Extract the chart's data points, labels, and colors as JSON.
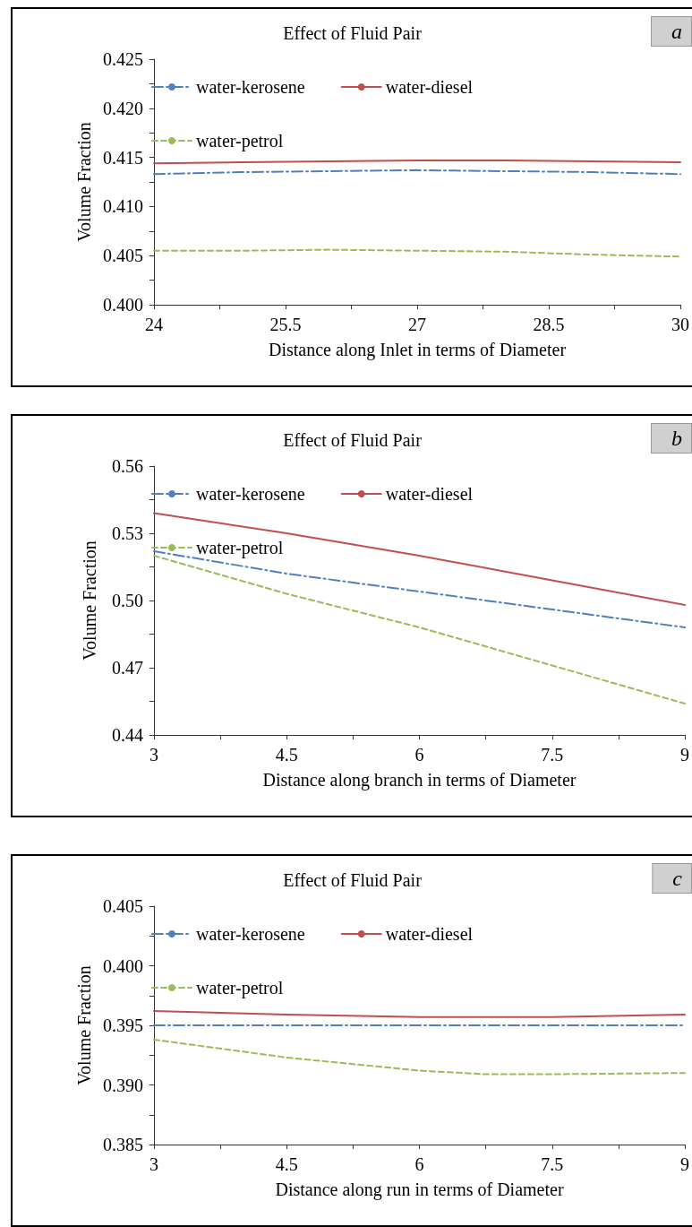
{
  "chart_data": [
    {
      "type": "line",
      "title": "Effect of Fluid Pair",
      "xlabel": "Distance along Inlet in terms of Diameter",
      "ylabel": "Volume Fraction",
      "annotations": [
        "a"
      ],
      "legend": "top",
      "grid": false,
      "marker": "none",
      "x": [
        24,
        25,
        26,
        27,
        28,
        29,
        30
      ],
      "xlim": [
        24,
        30
      ],
      "xticks": [
        24,
        {
          "value": 24.75,
          "label": null
        },
        25.5,
        {
          "value": 26.25,
          "label": null
        },
        27,
        {
          "value": 27.75,
          "label": null
        },
        28.5,
        {
          "value": 29.25,
          "label": null
        },
        30
      ],
      "ylim": [
        0.4,
        0.425
      ],
      "yticks": [
        {
          "value": 0.4,
          "label": "0.400"
        },
        {
          "value": 0.4025,
          "label": null
        },
        {
          "value": 0.405,
          "label": "0.405"
        },
        {
          "value": 0.4075,
          "label": null
        },
        {
          "value": 0.41,
          "label": "0.410"
        },
        {
          "value": 0.4125,
          "label": null
        },
        {
          "value": 0.415,
          "label": "0.415"
        },
        {
          "value": 0.4175,
          "label": null
        },
        {
          "value": 0.42,
          "label": "0.420"
        },
        {
          "value": 0.4225,
          "label": null
        },
        {
          "value": 0.425,
          "label": "0.425"
        }
      ],
      "series": [
        {
          "name": "water-kerosene",
          "color": "#4f81bd",
          "line_style": "dashdot",
          "values": [
            0.4133,
            0.4135,
            0.4136,
            0.4137,
            0.4136,
            0.4135,
            0.4133
          ]
        },
        {
          "name": "water-diesel",
          "color": "#c0504d",
          "line_style": "solid",
          "values": [
            0.4144,
            0.4145,
            0.4146,
            0.4147,
            0.4147,
            0.4146,
            0.4145
          ]
        },
        {
          "name": "water-petrol",
          "color": "#9bbb59",
          "line_style": "dashed",
          "values": [
            0.4055,
            0.4055,
            0.4056,
            0.4055,
            0.4054,
            0.4051,
            0.4049
          ]
        }
      ]
    },
    {
      "type": "line",
      "title": "Effect of Fluid Pair",
      "xlabel": "Distance along branch in terms of Diameter",
      "ylabel": "Volume Fraction",
      "annotations": [
        "b"
      ],
      "legend": "top",
      "grid": false,
      "marker": "none",
      "x": [
        3,
        4.5,
        6,
        7.5,
        9
      ],
      "xlim": [
        3,
        9
      ],
      "xticks": [
        3,
        {
          "value": 3.75,
          "label": null
        },
        4.5,
        {
          "value": 5.25,
          "label": null
        },
        6,
        {
          "value": 6.75,
          "label": null
        },
        7.5,
        {
          "value": 8.25,
          "label": null
        },
        9
      ],
      "ylim": [
        0.44,
        0.56
      ],
      "yticks": [
        {
          "value": 0.44,
          "label": "0.44"
        },
        {
          "value": 0.455,
          "label": null
        },
        {
          "value": 0.47,
          "label": "0.47"
        },
        {
          "value": 0.485,
          "label": null
        },
        {
          "value": 0.5,
          "label": "0.50"
        },
        {
          "value": 0.515,
          "label": null
        },
        {
          "value": 0.53,
          "label": "0.53"
        },
        {
          "value": 0.545,
          "label": null
        },
        {
          "value": 0.56,
          "label": "0.56"
        }
      ],
      "series": [
        {
          "name": "water-kerosene",
          "color": "#4f81bd",
          "line_style": "dashdot",
          "values": [
            0.522,
            0.512,
            0.504,
            0.496,
            0.488
          ]
        },
        {
          "name": "water-diesel",
          "color": "#c0504d",
          "line_style": "solid",
          "values": [
            0.539,
            0.53,
            0.52,
            0.509,
            0.498
          ]
        },
        {
          "name": "water-petrol",
          "color": "#9bbb59",
          "line_style": "dashed",
          "values": [
            0.52,
            0.503,
            0.488,
            0.471,
            0.454
          ]
        }
      ]
    },
    {
      "type": "line",
      "title": "Effect of Fluid Pair",
      "xlabel": "Distance along run in terms of Diameter",
      "ylabel": "Volume Fraction",
      "annotations": [
        "c"
      ],
      "legend": "top",
      "grid": false,
      "marker": "none",
      "x": [
        3,
        4.5,
        6,
        6.75,
        7.5,
        9
      ],
      "xlim": [
        3,
        9
      ],
      "xticks": [
        3,
        {
          "value": 3.75,
          "label": null
        },
        4.5,
        {
          "value": 5.25,
          "label": null
        },
        6,
        {
          "value": 6.75,
          "label": null
        },
        7.5,
        {
          "value": 8.25,
          "label": null
        },
        9
      ],
      "ylim": [
        0.385,
        0.405
      ],
      "yticks": [
        {
          "value": 0.385,
          "label": "0.385"
        },
        {
          "value": 0.3875,
          "label": null
        },
        {
          "value": 0.39,
          "label": "0.390"
        },
        {
          "value": 0.3925,
          "label": null
        },
        {
          "value": 0.395,
          "label": "0.395"
        },
        {
          "value": 0.3975,
          "label": null
        },
        {
          "value": 0.4,
          "label": "0.400"
        },
        {
          "value": 0.4025,
          "label": null
        },
        {
          "value": 0.405,
          "label": "0.405"
        }
      ],
      "series": [
        {
          "name": "water-kerosene",
          "color": "#4f81bd",
          "line_style": "dashdot",
          "values": [
            0.395,
            0.395,
            0.395,
            0.395,
            0.395,
            0.395
          ]
        },
        {
          "name": "water-diesel",
          "color": "#c0504d",
          "line_style": "solid",
          "values": [
            0.3962,
            0.3959,
            0.3957,
            0.3957,
            0.3957,
            0.3959
          ]
        },
        {
          "name": "water-petrol",
          "color": "#9bbb59",
          "line_style": "dashed",
          "values": [
            0.3938,
            0.3923,
            0.3912,
            0.3909,
            0.3909,
            0.391
          ]
        }
      ]
    }
  ]
}
